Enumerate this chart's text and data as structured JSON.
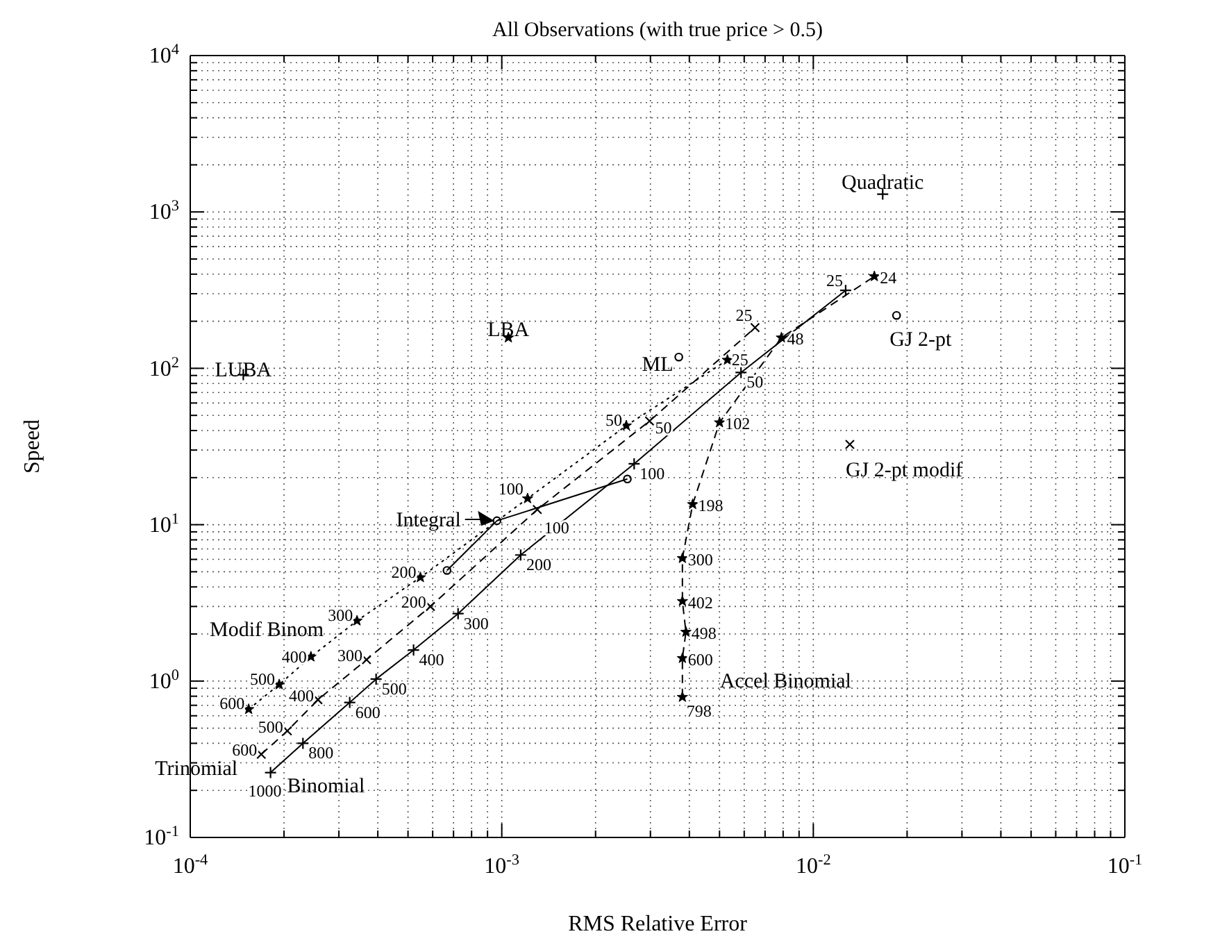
{
  "chart_data": {
    "type": "line",
    "title": "All Observations (with true price > 0.5)",
    "xlabel": "RMS Relative Error",
    "ylabel": "Speed",
    "log": "xy",
    "grid": true,
    "xlim": [
      0.0001,
      0.1
    ],
    "ylim": [
      0.1,
      10000
    ],
    "xticks": [
      {
        "value": 0.0001,
        "label": "10$^{-4}$"
      },
      {
        "value": 0.0002,
        "label": null
      },
      {
        "value": 0.0003,
        "label": null
      },
      {
        "value": 0.0004,
        "label": null
      },
      {
        "value": 0.0005,
        "label": null
      },
      {
        "value": 0.0006,
        "label": null
      },
      {
        "value": 0.0007,
        "label": null
      },
      {
        "value": 0.0008,
        "label": null
      },
      {
        "value": 0.0009,
        "label": null
      },
      {
        "value": 0.001,
        "label": "10$^{-3}$"
      },
      {
        "value": 0.002,
        "label": null
      },
      {
        "value": 0.003,
        "label": null
      },
      {
        "value": 0.004,
        "label": null
      },
      {
        "value": 0.005,
        "label": null
      },
      {
        "value": 0.006,
        "label": null
      },
      {
        "value": 0.007,
        "label": null
      },
      {
        "value": 0.008,
        "label": null
      },
      {
        "value": 0.009,
        "label": null
      },
      {
        "value": 0.01,
        "label": "10$^{-2}$"
      },
      {
        "value": 0.02,
        "label": null
      },
      {
        "value": 0.03,
        "label": null
      },
      {
        "value": 0.04,
        "label": null
      },
      {
        "value": 0.05,
        "label": null
      },
      {
        "value": 0.06,
        "label": null
      },
      {
        "value": 0.07,
        "label": null
      },
      {
        "value": 0.08,
        "label": null
      },
      {
        "value": 0.09,
        "label": null
      },
      {
        "value": 0.1,
        "label": "10$^{-1}$"
      }
    ],
    "yticks": [
      {
        "value": 0.1,
        "label": "10$^{-1}$"
      },
      {
        "value": 0.2,
        "label": null
      },
      {
        "value": 0.3,
        "label": null
      },
      {
        "value": 0.4,
        "label": null
      },
      {
        "value": 0.5,
        "label": null
      },
      {
        "value": 0.6,
        "label": null
      },
      {
        "value": 0.7,
        "label": null
      },
      {
        "value": 0.8,
        "label": null
      },
      {
        "value": 0.9,
        "label": null
      },
      {
        "value": 1,
        "label": "10$^{0}$"
      },
      {
        "value": 2,
        "label": null
      },
      {
        "value": 3,
        "label": null
      },
      {
        "value": 4,
        "label": null
      },
      {
        "value": 5,
        "label": null
      },
      {
        "value": 6,
        "label": null
      },
      {
        "value": 7,
        "label": null
      },
      {
        "value": 8,
        "label": null
      },
      {
        "value": 9,
        "label": null
      },
      {
        "value": 10,
        "label": "10$^{1}$"
      },
      {
        "value": 20,
        "label": null
      },
      {
        "value": 30,
        "label": null
      },
      {
        "value": 40,
        "label": null
      },
      {
        "value": 50,
        "label": null
      },
      {
        "value": 60,
        "label": null
      },
      {
        "value": 70,
        "label": null
      },
      {
        "value": 80,
        "label": null
      },
      {
        "value": 90,
        "label": null
      },
      {
        "value": 100,
        "label": "10$^{2}$"
      },
      {
        "value": 200,
        "label": null
      },
      {
        "value": 300,
        "label": null
      },
      {
        "value": 400,
        "label": null
      },
      {
        "value": 500,
        "label": null
      },
      {
        "value": 600,
        "label": null
      },
      {
        "value": 700,
        "label": null
      },
      {
        "value": 800,
        "label": null
      },
      {
        "value": 900,
        "label": null
      },
      {
        "value": 1000,
        "label": "10$^{3}$"
      },
      {
        "value": 2000,
        "label": null
      },
      {
        "value": 3000,
        "label": null
      },
      {
        "value": 4000,
        "label": null
      },
      {
        "value": 5000,
        "label": null
      },
      {
        "value": 6000,
        "label": null
      },
      {
        "value": 7000,
        "label": null
      },
      {
        "value": 8000,
        "label": null
      },
      {
        "value": 9000,
        "label": null
      },
      {
        "value": 10000,
        "label": "10$^{4}$"
      }
    ],
    "series": [
      {
        "name": "Binomial",
        "color": "#000000",
        "line_style": "solid",
        "marker": "plus",
        "x": [
          0.000181,
          0.00023,
          0.000325,
          0.000395,
          0.000521,
          0.000724,
          0.00115,
          0.00266,
          0.00586,
          0.0127
        ],
        "values": [
          0.26,
          0.4,
          0.73,
          1.03,
          1.58,
          2.7,
          6.4,
          24.5,
          94,
          315
        ]
      },
      {
        "name": "Trinomial",
        "color": "#000000",
        "line_style": "dashed",
        "marker": "cross",
        "x": [
          0.000169,
          0.000205,
          0.000257,
          0.000368,
          0.00059,
          0.0013,
          0.00298,
          0.0065
        ],
        "values": [
          0.34,
          0.48,
          0.76,
          1.37,
          3,
          12.5,
          46,
          182
        ]
      },
      {
        "name": "Modif Binom",
        "color": "#000000",
        "line_style": "dotted",
        "marker": "star",
        "x": [
          0.000154,
          0.000193,
          0.000244,
          0.000343,
          0.000548,
          0.00121,
          0.00251,
          0.0053
        ],
        "values": [
          0.66,
          0.95,
          1.43,
          2.43,
          4.6,
          14.7,
          43,
          113
        ]
      },
      {
        "name": "Accel Binomial",
        "color": "#000000",
        "line_style": "dashed",
        "marker": "star",
        "x": [
          0.0038,
          0.0038,
          0.0039,
          0.0038,
          0.0038,
          0.0041,
          0.005,
          0.0079,
          0.0157
        ],
        "values": [
          0.79,
          1.4,
          2.06,
          3.24,
          6.1,
          13.5,
          45,
          157,
          387
        ]
      },
      {
        "name": "Integral",
        "color": "#000000",
        "line_style": "solid",
        "marker": "circle",
        "x": [
          0.000667,
          0.000965,
          0.00253
        ],
        "values": [
          5.1,
          10.6,
          19.6
        ]
      },
      {
        "name": "ML",
        "type": "scatter",
        "color": "#000000",
        "marker": "circle",
        "x": [
          0.0037
        ],
        "values": [
          118
        ]
      },
      {
        "name": "GJ 2-pt",
        "type": "scatter",
        "color": "#000000",
        "marker": "circle",
        "x": [
          0.0185
        ],
        "values": [
          218
        ]
      },
      {
        "name": "GJ 2-pt modif",
        "type": "scatter",
        "color": "#000000",
        "marker": "cross",
        "x": [
          0.0131
        ],
        "values": [
          32.6
        ]
      },
      {
        "name": "Quadratic",
        "type": "scatter",
        "color": "#000000",
        "marker": "plus",
        "x": [
          0.0167
        ],
        "values": [
          1300
        ]
      },
      {
        "name": "LBA",
        "type": "scatter",
        "color": "#000000",
        "marker": "star",
        "x": [
          0.00105
        ],
        "values": [
          157
        ]
      },
      {
        "name": "LUBA",
        "type": "scatter",
        "color": "#000000",
        "marker": "plus",
        "x": [
          0.000148
        ],
        "values": [
          91
        ]
      }
    ],
    "annotations": [
      {
        "text": "1000",
        "x": 0.000181,
        "y": 0.26
      },
      {
        "text": "800",
        "x": 0.00023,
        "y": 0.4
      },
      {
        "text": "600",
        "x": 0.000325,
        "y": 0.73
      },
      {
        "text": "500",
        "x": 0.000395,
        "y": 1.03
      },
      {
        "text": "400",
        "x": 0.000521,
        "y": 1.58
      },
      {
        "text": "300",
        "x": 0.000724,
        "y": 2.7
      },
      {
        "text": "200",
        "x": 0.00115,
        "y": 6.4
      },
      {
        "text": "100",
        "x": 0.00266,
        "y": 24.5
      },
      {
        "text": "50",
        "x": 0.00586,
        "y": 94
      },
      {
        "text": "25",
        "x": 0.0127,
        "y": 315
      },
      {
        "text": "600",
        "x": 0.000169,
        "y": 0.34
      },
      {
        "text": "500",
        "x": 0.000205,
        "y": 0.48
      },
      {
        "text": "400",
        "x": 0.000257,
        "y": 0.76
      },
      {
        "text": "300",
        "x": 0.000368,
        "y": 1.37
      },
      {
        "text": "200",
        "x": 0.00059,
        "y": 3
      },
      {
        "text": "100",
        "x": 0.0013,
        "y": 12.5
      },
      {
        "text": "50",
        "x": 0.00298,
        "y": 46
      },
      {
        "text": "25",
        "x": 0.0065,
        "y": 182
      },
      {
        "text": "600",
        "x": 0.000154,
        "y": 0.66
      },
      {
        "text": "500",
        "x": 0.000193,
        "y": 0.95
      },
      {
        "text": "400",
        "x": 0.000244,
        "y": 1.43
      },
      {
        "text": "300",
        "x": 0.000343,
        "y": 2.43
      },
      {
        "text": "200",
        "x": 0.000548,
        "y": 4.6
      },
      {
        "text": "100",
        "x": 0.00121,
        "y": 14.7
      },
      {
        "text": "50",
        "x": 0.00251,
        "y": 43
      },
      {
        "text": "25",
        "x": 0.0053,
        "y": 113
      },
      {
        "text": "798",
        "x": 0.0038,
        "y": 0.79
      },
      {
        "text": "600",
        "x": 0.0038,
        "y": 1.4
      },
      {
        "text": "498",
        "x": 0.0039,
        "y": 2.06
      },
      {
        "text": "402",
        "x": 0.0038,
        "y": 3.24
      },
      {
        "text": "300",
        "x": 0.0038,
        "y": 6.1
      },
      {
        "text": "198",
        "x": 0.0041,
        "y": 13.5
      },
      {
        "text": "102",
        "x": 0.005,
        "y": 45
      },
      {
        "text": "48",
        "x": 0.0079,
        "y": 157
      },
      {
        "text": "24",
        "x": 0.0157,
        "y": 387
      }
    ]
  }
}
